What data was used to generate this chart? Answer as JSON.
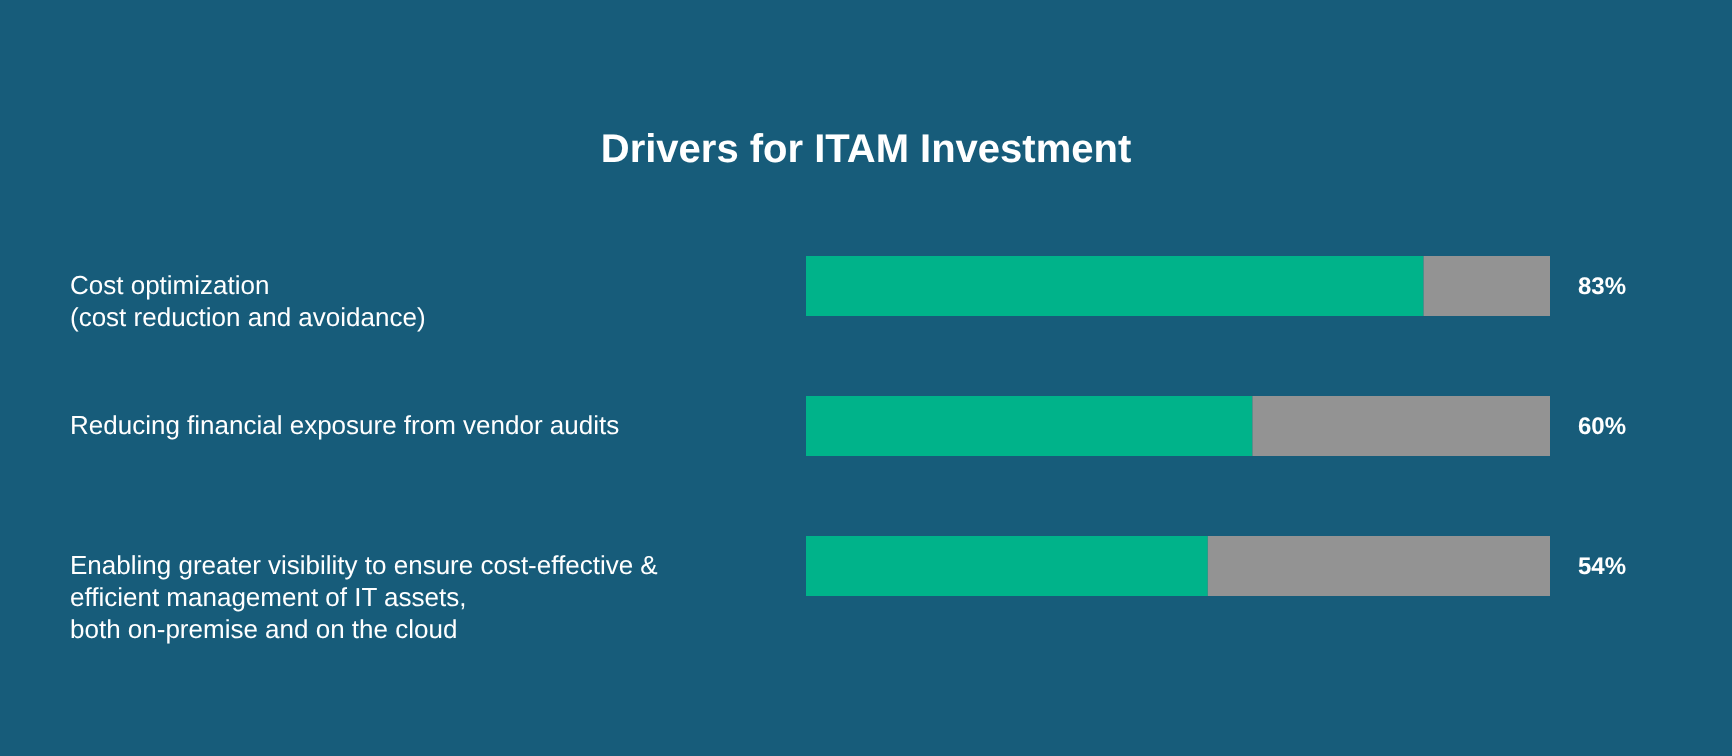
{
  "chart_data": {
    "type": "bar",
    "orientation": "horizontal",
    "stacked": true,
    "title": "Drivers for ITAM Investment",
    "categories": [
      "Cost optimization\n(cost reduction and avoidance)",
      "Reducing financial exposure from vendor audits",
      "Enabling greater visibility to ensure cost-effective &\nefficient management of IT assets,\nboth on-premise and on the cloud"
    ],
    "series": [
      {
        "color": "#00b38a",
        "values": [
          83,
          60,
          54
        ],
        "value_labels": [
          "83%",
          "60%",
          "54%"
        ]
      },
      {
        "color": "#939393",
        "values": [
          17,
          40,
          46
        ]
      }
    ],
    "legend": false,
    "grid": false
  }
}
